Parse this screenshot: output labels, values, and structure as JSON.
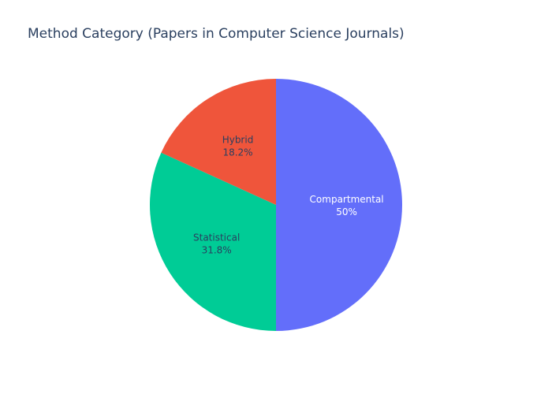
{
  "chart_data": {
    "type": "pie",
    "title": "Method Category (Papers in Computer Science Journals)",
    "categories": [
      "Compartmental",
      "Statistical",
      "Hybrid"
    ],
    "values": [
      50,
      31.8,
      18.2
    ],
    "value_labels": [
      "50%",
      "31.8%",
      "18.2%"
    ],
    "colors": [
      "#636efa",
      "#00cc96",
      "#ef553b"
    ],
    "label_colors": [
      "#ffffff",
      "#2a3f5f",
      "#2a3f5f"
    ],
    "start_angle_deg": 90,
    "direction": "clockwise",
    "legend": "none"
  }
}
